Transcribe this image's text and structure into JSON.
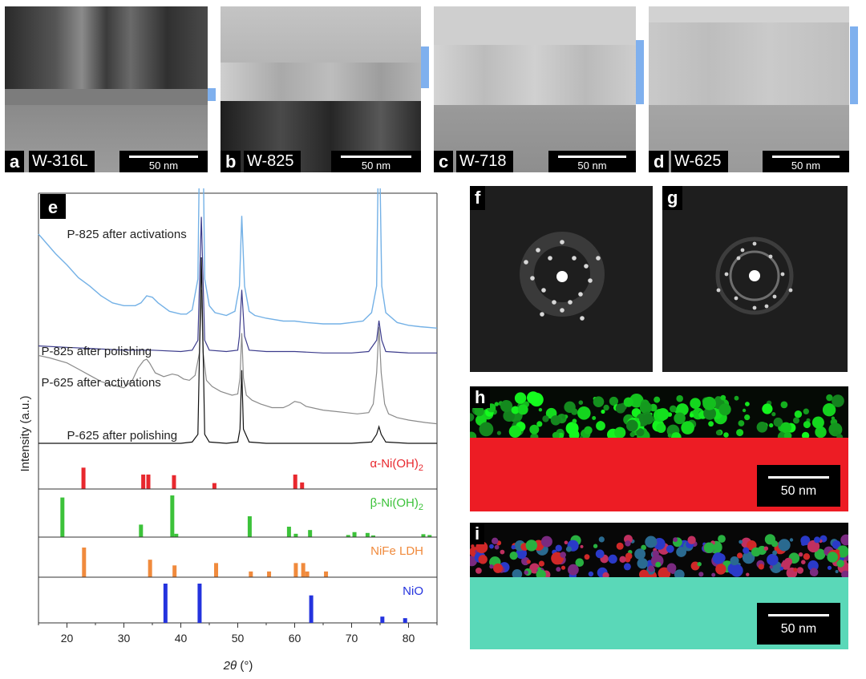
{
  "tem_panels": [
    {
      "letter": "a",
      "sample": "W-316L",
      "scale": "50 nm"
    },
    {
      "letter": "b",
      "sample": "W-825",
      "scale": "50 nm"
    },
    {
      "letter": "c",
      "sample": "W-718",
      "scale": "50 nm"
    },
    {
      "letter": "d",
      "sample": "W-625",
      "scale": "50 nm"
    }
  ],
  "saed_panels": [
    {
      "letter": "f"
    },
    {
      "letter": "g"
    }
  ],
  "map_panels": [
    {
      "letter": "h",
      "scale": "50 nm"
    },
    {
      "letter": "i",
      "scale": "50 nm"
    }
  ],
  "chart_data": {
    "type": "line",
    "panel_letter": "e",
    "xlabel_italic": "2θ",
    "xlabel_unit": "(°)",
    "ylabel": "Intensity (a.u.)",
    "xlim": [
      15,
      85
    ],
    "xticks": [
      20,
      30,
      40,
      50,
      60,
      70,
      80
    ],
    "series": [
      {
        "name": "P-825 after activations",
        "color": "#74b1e6",
        "x": [
          15,
          18,
          20,
          22,
          24,
          26,
          28,
          30,
          32,
          33,
          34,
          35,
          36,
          38,
          40,
          41,
          42,
          43,
          43.6,
          44.2,
          45,
          46,
          48,
          49.5,
          50.3,
          50.7,
          51.2,
          52,
          53,
          55,
          58,
          60,
          62,
          65,
          68,
          70,
          72,
          73.5,
          74.4,
          74.8,
          75.3,
          76,
          78,
          80,
          82,
          85
        ],
        "y": [
          92,
          78,
          70,
          61,
          55,
          48,
          43,
          41,
          41,
          43,
          48,
          47,
          43,
          37,
          35,
          35,
          38,
          60,
          260,
          60,
          41,
          36,
          34,
          37,
          55,
          105,
          55,
          37,
          34,
          32,
          30,
          30,
          29,
          28,
          28,
          29,
          30,
          36,
          55,
          180,
          55,
          36,
          29,
          27,
          26,
          25
        ]
      },
      {
        "name": "P-825 after polishing",
        "color": "#3c3c8c",
        "x": [
          15,
          20,
          25,
          30,
          35,
          40,
          42,
          43,
          43.6,
          44.2,
          45,
          48,
          50,
          50.3,
          50.7,
          51.2,
          52,
          55,
          60,
          65,
          70,
          73,
          74.4,
          74.8,
          75.3,
          76,
          80,
          85
        ],
        "y": [
          18,
          17,
          16,
          15,
          15,
          14,
          15,
          22,
          110,
          22,
          15,
          14,
          15,
          25,
          58,
          25,
          15,
          14,
          14,
          13,
          13,
          14,
          22,
          36,
          22,
          14,
          13,
          13
        ]
      },
      {
        "name": "P-625 after activations",
        "color": "#8a8a8a",
        "x": [
          15,
          17,
          20,
          22,
          24,
          26,
          28,
          30,
          31.5,
          32.5,
          33.5,
          34,
          34.5,
          35.5,
          37,
          38.5,
          39.5,
          40.5,
          41.5,
          42.5,
          43.3,
          43.6,
          43.9,
          44.5,
          45.5,
          47,
          49,
          50,
          50.4,
          50.7,
          51,
          51.5,
          52.5,
          54,
          56,
          58,
          59,
          60,
          61,
          62,
          63,
          65,
          67,
          69,
          71,
          73,
          73.8,
          74.4,
          74.8,
          75.2,
          75.8,
          76.5,
          78,
          80,
          83,
          85
        ],
        "y": [
          72,
          70,
          66,
          61,
          56,
          51,
          48,
          46,
          52,
          62,
          68,
          69,
          66,
          58,
          55,
          57,
          56,
          53,
          52,
          56,
          75,
          125,
          75,
          52,
          47,
          43,
          40,
          41,
          54,
          90,
          54,
          40,
          36,
          33,
          30,
          30,
          32,
          35,
          34,
          31,
          30,
          28,
          27,
          26,
          25,
          26,
          33,
          58,
          95,
          58,
          33,
          25,
          22,
          20,
          18,
          17
        ]
      },
      {
        "name": "P-625 after polishing",
        "color": "#111111",
        "x": [
          15,
          20,
          30,
          40,
          42,
          43,
          43.6,
          44.2,
          45,
          48,
          50,
          50.4,
          50.7,
          51,
          52,
          55,
          60,
          65,
          70,
          73.5,
          74.4,
          74.8,
          75.2,
          76,
          80,
          85
        ],
        "y": [
          5,
          5,
          5,
          5,
          6,
          12,
          150,
          12,
          6,
          5,
          6,
          16,
          62,
          16,
          6,
          5,
          5,
          5,
          5,
          6,
          12,
          18,
          12,
          6,
          5,
          5
        ]
      }
    ],
    "series_label_x": [
      20,
      15.5,
      15.5,
      20
    ],
    "reference_patterns": [
      {
        "name": "α-Ni(OH)",
        "subscript": "2",
        "color": "#e8282e",
        "peaks": [
          [
            22.9,
            65
          ],
          [
            33.4,
            44
          ],
          [
            34.3,
            44
          ],
          [
            38.8,
            42
          ],
          [
            45.9,
            18
          ],
          [
            60.1,
            44
          ],
          [
            61.3,
            20
          ]
        ]
      },
      {
        "name": "β-Ni(OH)",
        "subscript": "2",
        "color": "#3cc23a",
        "peaks": [
          [
            19.2,
            95
          ],
          [
            33.0,
            30
          ],
          [
            38.5,
            100
          ],
          [
            39.2,
            8
          ],
          [
            52.1,
            50
          ],
          [
            59.0,
            25
          ],
          [
            60.2,
            8
          ],
          [
            62.7,
            17
          ],
          [
            69.4,
            5
          ],
          [
            70.5,
            12
          ],
          [
            72.8,
            10
          ],
          [
            73.8,
            4
          ],
          [
            82.6,
            7
          ],
          [
            83.7,
            5
          ]
        ]
      },
      {
        "name": "NiFe LDH",
        "subscript": "",
        "color": "#f08a3c",
        "peaks": [
          [
            23.0,
            88
          ],
          [
            34.6,
            52
          ],
          [
            38.9,
            35
          ],
          [
            46.2,
            42
          ],
          [
            52.3,
            17
          ],
          [
            55.5,
            17
          ],
          [
            60.2,
            42
          ],
          [
            61.5,
            42
          ],
          [
            62.2,
            17
          ],
          [
            65.5,
            17
          ]
        ]
      },
      {
        "name": "NiO",
        "subscript": "",
        "color": "#2433de",
        "peaks": [
          [
            37.3,
            100
          ],
          [
            43.3,
            100
          ],
          [
            62.9,
            70
          ],
          [
            75.4,
            16
          ],
          [
            79.4,
            12
          ]
        ]
      }
    ]
  }
}
